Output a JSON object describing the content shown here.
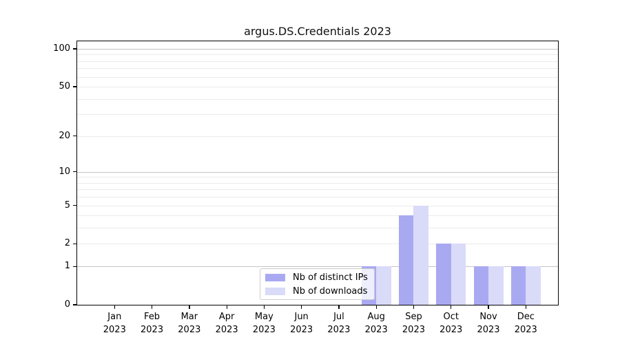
{
  "chart_data": {
    "type": "bar",
    "title": "argus.DS.Credentials 2023",
    "categories": [
      "Jan 2023",
      "Feb 2023",
      "Mar 2023",
      "Apr 2023",
      "May 2023",
      "Jun 2023",
      "Jul 2023",
      "Aug 2023",
      "Sep 2023",
      "Oct 2023",
      "Nov 2023",
      "Dec 2023"
    ],
    "series": [
      {
        "name": "Nb of distinct IPs",
        "color": "#a9a9f2",
        "values": [
          0,
          0,
          0,
          0,
          0,
          0,
          0,
          1,
          4,
          2,
          1,
          1
        ]
      },
      {
        "name": "Nb of downloads",
        "color": "#dadaf9",
        "values": [
          0,
          0,
          0,
          0,
          0,
          0,
          0,
          1,
          5,
          2,
          1,
          1
        ]
      }
    ],
    "xlabel": "",
    "ylabel": "",
    "yscale": "symlog-log10(1+v)",
    "yticks": [
      0,
      1,
      2,
      5,
      10,
      20,
      50,
      100
    ],
    "ytick_major_gridlines": [
      1,
      10,
      100
    ],
    "ytick_minor_gridlines": [
      2,
      3,
      4,
      5,
      6,
      7,
      8,
      9,
      20,
      30,
      40,
      50,
      60,
      70,
      80,
      90
    ],
    "ylim": [
      0,
      115
    ],
    "grid": "horizontal",
    "legend_position": "lower center inside"
  },
  "colors": {
    "grid_major": "#c3c3c3",
    "grid_minor": "#ebebeb",
    "axis": "#000000",
    "legend_border": "#cccccc",
    "background": "#ffffff"
  }
}
